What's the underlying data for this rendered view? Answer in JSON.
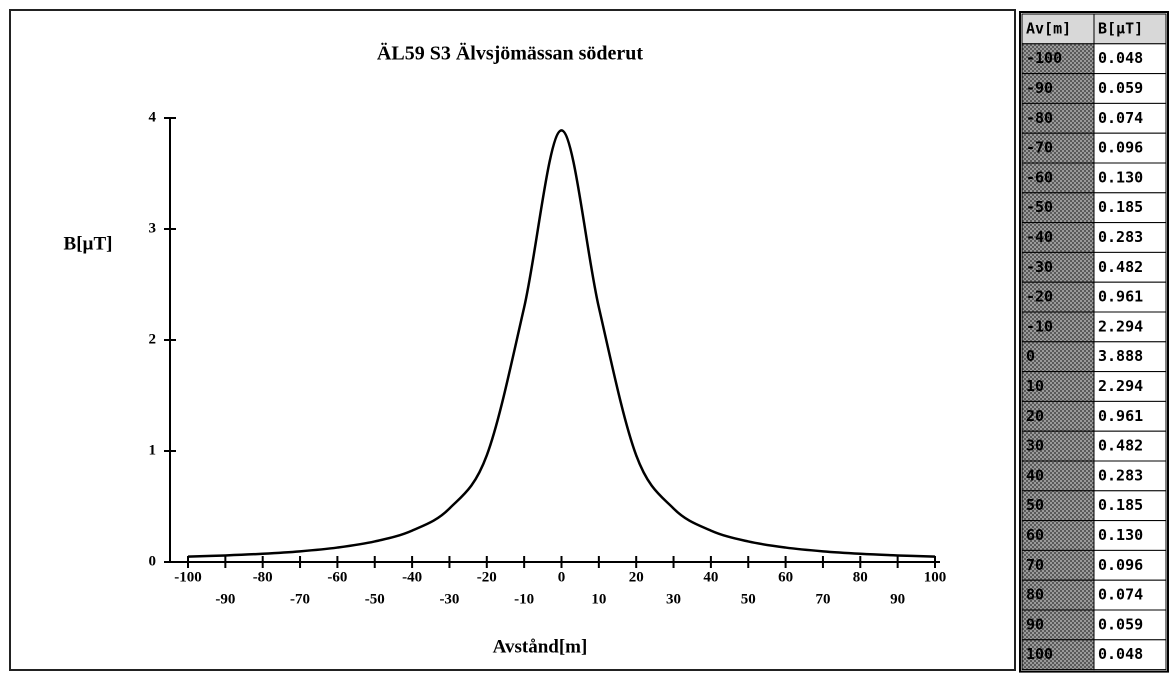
{
  "chart_data": {
    "type": "line",
    "title": "ÄL59 S3 Älvsjömässan söderut",
    "xlabel": "Avstånd[m]",
    "ylabel": "B[µT]",
    "x": [
      -100,
      -90,
      -80,
      -70,
      -60,
      -50,
      -40,
      -30,
      -20,
      -10,
      0,
      10,
      20,
      30,
      40,
      50,
      60,
      70,
      80,
      90,
      100
    ],
    "values": [
      0.048,
      0.059,
      0.074,
      0.096,
      0.13,
      0.185,
      0.283,
      0.482,
      0.961,
      2.294,
      3.888,
      2.294,
      0.961,
      0.482,
      0.283,
      0.185,
      0.13,
      0.096,
      0.074,
      0.059,
      0.048
    ],
    "value_labels": [
      "0.048",
      "0.059",
      "0.074",
      "0.096",
      "0.130",
      "0.185",
      "0.283",
      "0.482",
      "0.961",
      "2.294",
      "3.888",
      "2.294",
      "0.961",
      "0.482",
      "0.283",
      "0.185",
      "0.130",
      "0.096",
      "0.074",
      "0.059",
      "0.048"
    ],
    "color": "#000000",
    "xlim": [
      -100,
      100
    ],
    "xticks": [
      -100,
      -90,
      -80,
      -70,
      -60,
      -50,
      -40,
      -30,
      -20,
      -10,
      0,
      10,
      20,
      30,
      40,
      50,
      60,
      70,
      80,
      90,
      100
    ],
    "ylim": [
      0,
      4
    ],
    "yticks": [
      0,
      1,
      2,
      3,
      4
    ]
  },
  "table": {
    "headers": [
      "Av[m]",
      "B[µT]"
    ]
  }
}
